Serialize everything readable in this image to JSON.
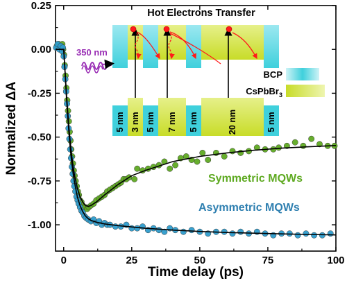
{
  "chart_data": {
    "type": "scatter",
    "xlabel": "Time delay (ps)",
    "ylabel_main": "Normalized ",
    "ylabel_delta": "ΔA",
    "xlim": [
      -3,
      100
    ],
    "ylim": [
      -1.15,
      0.25
    ],
    "xticks": [
      0,
      25,
      50,
      75,
      100
    ],
    "yticks": [
      0.25,
      0.0,
      -0.25,
      -0.5,
      -0.75,
      -1.0
    ],
    "ytick_labels": [
      "0.25",
      "0.00",
      "-0.25",
      "-0.50",
      "-0.75",
      "-1.00"
    ],
    "grid": false,
    "series": [
      {
        "name": "Symmetric MQWs",
        "color": "#5faa22",
        "points": [
          [
            -2.5,
            0.02
          ],
          [
            -1.8,
            0.03
          ],
          [
            -1.2,
            0.02
          ],
          [
            -0.8,
            0.01
          ],
          [
            -0.5,
            0.03
          ],
          [
            -0.2,
            0.0
          ],
          [
            0.1,
            -0.03
          ],
          [
            0.4,
            -0.09
          ],
          [
            0.7,
            -0.15
          ],
          [
            1.0,
            -0.22
          ],
          [
            1.3,
            -0.29
          ],
          [
            1.6,
            -0.35
          ],
          [
            1.9,
            -0.41
          ],
          [
            2.2,
            -0.47
          ],
          [
            2.5,
            -0.52
          ],
          [
            2.8,
            -0.57
          ],
          [
            3.1,
            -0.61
          ],
          [
            3.4,
            -0.65
          ],
          [
            3.7,
            -0.69
          ],
          [
            4.0,
            -0.72
          ],
          [
            4.4,
            -0.75
          ],
          [
            4.8,
            -0.78
          ],
          [
            5.2,
            -0.81
          ],
          [
            5.6,
            -0.83
          ],
          [
            6.0,
            -0.86
          ],
          [
            6.5,
            -0.87
          ],
          [
            7.0,
            -0.89
          ],
          [
            7.5,
            -0.9
          ],
          [
            8.0,
            -0.9
          ],
          [
            8.6,
            -0.91
          ],
          [
            9.2,
            -0.9
          ],
          [
            10,
            -0.89
          ],
          [
            11,
            -0.88
          ],
          [
            12,
            -0.86
          ],
          [
            13,
            -0.85
          ],
          [
            14,
            -0.84
          ],
          [
            15,
            -0.83
          ],
          [
            16,
            -0.81
          ],
          [
            17,
            -0.8
          ],
          [
            18,
            -0.79
          ],
          [
            19,
            -0.78
          ],
          [
            20,
            -0.77
          ],
          [
            21,
            -0.76
          ],
          [
            22,
            -0.74
          ],
          [
            23,
            -0.74
          ],
          [
            24,
            -0.73
          ],
          [
            26,
            -0.74
          ],
          [
            27,
            -0.68
          ],
          [
            29,
            -0.69
          ],
          [
            31,
            -0.68
          ],
          [
            33,
            -0.67
          ],
          [
            35,
            -0.66
          ],
          [
            37,
            -0.64
          ],
          [
            39,
            -0.68
          ],
          [
            41,
            -0.66
          ],
          [
            43,
            -0.62
          ],
          [
            45,
            -0.61
          ],
          [
            47,
            -0.63
          ],
          [
            49,
            -0.64
          ],
          [
            51,
            -0.59
          ],
          [
            53,
            -0.63
          ],
          [
            56,
            -0.59
          ],
          [
            59,
            -0.61
          ],
          [
            62,
            -0.58
          ],
          [
            65,
            -0.59
          ],
          [
            68,
            -0.58
          ],
          [
            71,
            -0.56
          ],
          [
            74,
            -0.57
          ],
          [
            77,
            -0.57
          ],
          [
            79,
            -0.56
          ],
          [
            82,
            -0.55
          ],
          [
            85,
            -0.53
          ],
          [
            88,
            -0.55
          ],
          [
            91,
            -0.51
          ],
          [
            94,
            -0.54
          ],
          [
            97,
            -0.55
          ],
          [
            99.5,
            -0.55
          ]
        ]
      },
      {
        "name": "Asymmetric MQWs",
        "color": "#2e9ccc",
        "points": [
          [
            -2.8,
            0.01
          ],
          [
            -2.2,
            0.03
          ],
          [
            -1.6,
            0.0
          ],
          [
            -1.0,
            0.02
          ],
          [
            -0.6,
            -0.01
          ],
          [
            -0.3,
            0.01
          ],
          [
            0.0,
            -0.04
          ],
          [
            0.3,
            -0.1
          ],
          [
            0.6,
            -0.17
          ],
          [
            0.9,
            -0.24
          ],
          [
            1.2,
            -0.31
          ],
          [
            1.5,
            -0.38
          ],
          [
            1.8,
            -0.45
          ],
          [
            2.1,
            -0.51
          ],
          [
            2.4,
            -0.57
          ],
          [
            2.7,
            -0.62
          ],
          [
            3.0,
            -0.67
          ],
          [
            3.3,
            -0.71
          ],
          [
            3.6,
            -0.75
          ],
          [
            3.9,
            -0.78
          ],
          [
            4.3,
            -0.81
          ],
          [
            4.7,
            -0.84
          ],
          [
            5.1,
            -0.86
          ],
          [
            5.5,
            -0.88
          ],
          [
            6.0,
            -0.9
          ],
          [
            6.5,
            -0.92
          ],
          [
            7.0,
            -0.93
          ],
          [
            7.6,
            -0.95
          ],
          [
            8.2,
            -0.96
          ],
          [
            9.0,
            -0.97
          ],
          [
            10,
            -0.98
          ],
          [
            11,
            -0.97
          ],
          [
            12,
            -0.99
          ],
          [
            13,
            -0.98
          ],
          [
            14,
            -1.0
          ],
          [
            15,
            -0.99
          ],
          [
            16,
            -1.0
          ],
          [
            17,
            -1.0
          ],
          [
            19,
            -1.01
          ],
          [
            21,
            -1.01
          ],
          [
            23,
            -1.0
          ],
          [
            25,
            -1.02
          ],
          [
            27,
            -1.02
          ],
          [
            29,
            -1.01
          ],
          [
            31,
            -1.03
          ],
          [
            33,
            -1.02
          ],
          [
            35,
            -1.03
          ],
          [
            37,
            -1.04
          ],
          [
            39,
            -1.02
          ],
          [
            41,
            -1.03
          ],
          [
            44,
            -1.04
          ],
          [
            47,
            -1.03
          ],
          [
            50,
            -1.04
          ],
          [
            53,
            -1.05
          ],
          [
            56,
            -1.04
          ],
          [
            59,
            -1.04
          ],
          [
            62,
            -1.05
          ],
          [
            65,
            -1.04
          ],
          [
            68,
            -1.05
          ],
          [
            71,
            -1.04
          ],
          [
            74,
            -1.05
          ],
          [
            77,
            -1.06
          ],
          [
            80,
            -1.05
          ],
          [
            83,
            -1.05
          ],
          [
            86,
            -1.06
          ],
          [
            89,
            -1.05
          ],
          [
            92,
            -1.06
          ],
          [
            95,
            -1.06
          ],
          [
            98,
            -1.05
          ]
        ]
      }
    ],
    "fits": [
      {
        "name": "Symmetric MQWs fit",
        "color": "#000000",
        "points": [
          [
            -3,
            0.0
          ],
          [
            0,
            0.0
          ],
          [
            0.5,
            -0.12
          ],
          [
            1,
            -0.25
          ],
          [
            1.5,
            -0.36
          ],
          [
            2,
            -0.46
          ],
          [
            2.5,
            -0.54
          ],
          [
            3,
            -0.61
          ],
          [
            3.5,
            -0.67
          ],
          [
            4,
            -0.72
          ],
          [
            5,
            -0.79
          ],
          [
            6,
            -0.84
          ],
          [
            7,
            -0.87
          ],
          [
            8,
            -0.89
          ],
          [
            9,
            -0.895
          ],
          [
            10,
            -0.89
          ],
          [
            12,
            -0.87
          ],
          [
            15,
            -0.83
          ],
          [
            20,
            -0.77
          ],
          [
            25,
            -0.72
          ],
          [
            30,
            -0.69
          ],
          [
            40,
            -0.64
          ],
          [
            50,
            -0.61
          ],
          [
            60,
            -0.59
          ],
          [
            70,
            -0.575
          ],
          [
            80,
            -0.563
          ],
          [
            90,
            -0.555
          ],
          [
            100,
            -0.548
          ]
        ]
      },
      {
        "name": "Asymmetric MQWs fit",
        "color": "#000000",
        "points": [
          [
            -3,
            0.0
          ],
          [
            0,
            0.0
          ],
          [
            0.5,
            -0.13
          ],
          [
            1,
            -0.27
          ],
          [
            1.5,
            -0.39
          ],
          [
            2,
            -0.49
          ],
          [
            2.5,
            -0.58
          ],
          [
            3,
            -0.65
          ],
          [
            3.5,
            -0.71
          ],
          [
            4,
            -0.76
          ],
          [
            5,
            -0.84
          ],
          [
            6,
            -0.89
          ],
          [
            7,
            -0.925
          ],
          [
            8,
            -0.95
          ],
          [
            9,
            -0.965
          ],
          [
            10,
            -0.975
          ],
          [
            12,
            -0.985
          ],
          [
            15,
            -0.995
          ],
          [
            20,
            -1.005
          ],
          [
            30,
            -1.02
          ],
          [
            40,
            -1.03
          ],
          [
            50,
            -1.038
          ],
          [
            60,
            -1.044
          ],
          [
            70,
            -1.048
          ],
          [
            80,
            -1.052
          ],
          [
            90,
            -1.055
          ],
          [
            100,
            -1.058
          ]
        ]
      }
    ],
    "annotations": {
      "sym_label": "Symmetric MQWs",
      "asym_label": "Asymmetric MQWs"
    },
    "inset": {
      "title": "Hot Electrons Transfer",
      "excitation": "350 nm",
      "legend_bcp": "BCP",
      "legend_cspbbr3_main": "CsPbBr",
      "legend_cspbbr3_sub": "3",
      "colors": {
        "bcp": "#3fd0dc",
        "cspbbr3": "#c8dc28",
        "electron": "#ff1a1a",
        "excitation": "#9a2fb5"
      },
      "layer_labels": [
        "5 nm",
        "3 nm",
        "5 nm",
        "7 nm",
        "5 nm",
        "20 nm",
        "5 nm"
      ]
    }
  }
}
